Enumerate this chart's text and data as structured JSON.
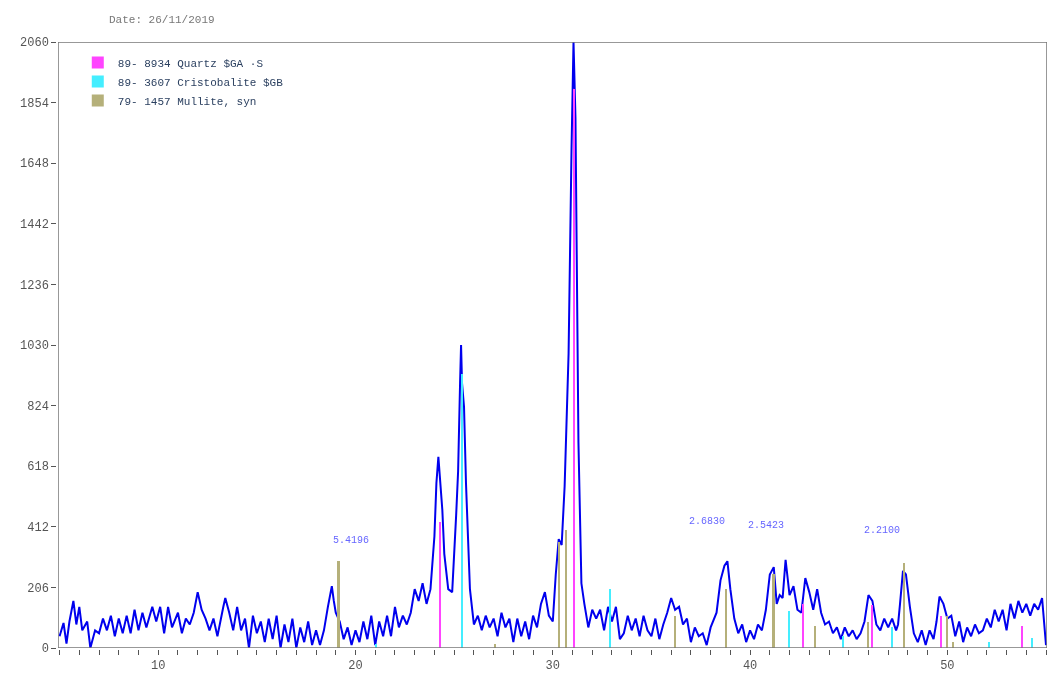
{
  "chart_data": {
    "type": "line",
    "xlim": [
      4.92,
      55.05
    ],
    "ylim": [
      0,
      2060
    ],
    "xticks": [
      {
        "value": 5,
        "label": null
      },
      {
        "value": 6,
        "label": null
      },
      {
        "value": 7,
        "label": null
      },
      {
        "value": 8,
        "label": null
      },
      {
        "value": 9,
        "label": null
      },
      10,
      {
        "value": 11,
        "label": null
      },
      {
        "value": 12,
        "label": null
      },
      {
        "value": 13,
        "label": null
      },
      {
        "value": 14,
        "label": null
      },
      {
        "value": 15,
        "label": null
      },
      {
        "value": 16,
        "label": null
      },
      {
        "value": 17,
        "label": null
      },
      {
        "value": 18,
        "label": null
      },
      {
        "value": 19,
        "label": null
      },
      20,
      {
        "value": 21,
        "label": null
      },
      {
        "value": 22,
        "label": null
      },
      {
        "value": 23,
        "label": null
      },
      {
        "value": 24,
        "label": null
      },
      {
        "value": 25,
        "label": null
      },
      {
        "value": 26,
        "label": null
      },
      {
        "value": 27,
        "label": null
      },
      {
        "value": 28,
        "label": null
      },
      {
        "value": 29,
        "label": null
      },
      30,
      {
        "value": 31,
        "label": null
      },
      {
        "value": 32,
        "label": null
      },
      {
        "value": 33,
        "label": null
      },
      {
        "value": 34,
        "label": null
      },
      {
        "value": 35,
        "label": null
      },
      {
        "value": 36,
        "label": null
      },
      {
        "value": 37,
        "label": null
      },
      {
        "value": 38,
        "label": null
      },
      {
        "value": 39,
        "label": null
      },
      40,
      {
        "value": 41,
        "label": null
      },
      {
        "value": 42,
        "label": null
      },
      {
        "value": 43,
        "label": null
      },
      {
        "value": 44,
        "label": null
      },
      {
        "value": 45,
        "label": null
      },
      {
        "value": 46,
        "label": null
      },
      {
        "value": 47,
        "label": null
      },
      {
        "value": 48,
        "label": null
      },
      {
        "value": 49,
        "label": null
      },
      50,
      {
        "value": 51,
        "label": null
      },
      {
        "value": 52,
        "label": null
      },
      {
        "value": 53,
        "label": null
      },
      {
        "value": 54,
        "label": null
      },
      {
        "value": 55,
        "label": null
      }
    ],
    "yticks": [
      0,
      206,
      412,
      618,
      824,
      1030,
      1236,
      1442,
      1648,
      1854,
      2060
    ],
    "legend": "top left",
    "marker": "none",
    "line_style": "solid",
    "series": [
      {
        "type": "bar",
        "name": "89- 8934 Quartz $GA ·S",
        "color": "#ff44ff",
        "x": [
          24.3,
          31.1,
          42.7,
          46.2,
          49.7,
          53.8
        ],
        "values": [
          430,
          1900,
          150,
          145,
          110,
          75
        ]
      },
      {
        "type": "bar",
        "name": "89- 3607 Cristobalite $GB",
        "color": "#44eeff",
        "x": [
          21.05,
          25.4,
          32.9,
          42.0,
          44.7,
          47.2,
          52.1,
          54.3
        ],
        "values": [
          15,
          930,
          200,
          125,
          40,
          70,
          20,
          35
        ]
      },
      {
        "type": "bar",
        "name": "79- 1457 Mullite, syn",
        "color": "#b5b07a",
        "x": [
          19.15,
          27.1,
          30.35,
          30.7,
          36.2,
          38.8,
          41.2,
          43.3,
          46.0,
          47.8,
          50.0,
          50.3
        ],
        "values": [
          295,
          15,
          360,
          400,
          110,
          200,
          250,
          75,
          90,
          290,
          110,
          20
        ]
      },
      {
        "color": "#0000ee",
        "x": [
          5.0,
          5.2,
          5.35,
          5.5,
          5.7,
          5.85,
          6.0,
          6.15,
          6.4,
          6.56,
          6.8,
          7.0,
          7.2,
          7.4,
          7.6,
          7.8,
          8.0,
          8.2,
          8.4,
          8.6,
          8.8,
          9.0,
          9.2,
          9.4,
          9.7,
          9.9,
          10.1,
          10.3,
          10.5,
          10.7,
          11.0,
          11.2,
          11.4,
          11.6,
          11.8,
          12.0,
          12.2,
          12.4,
          12.6,
          12.8,
          13.0,
          13.3,
          13.4,
          13.6,
          13.8,
          14.0,
          14.2,
          14.4,
          14.6,
          14.8,
          15.0,
          15.2,
          15.4,
          15.6,
          15.8,
          16.0,
          16.2,
          16.4,
          16.6,
          16.8,
          17.0,
          17.2,
          17.4,
          17.6,
          17.8,
          18.0,
          18.2,
          18.4,
          18.6,
          18.8,
          18.9,
          19.0,
          19.2,
          19.4,
          19.6,
          19.8,
          20.0,
          20.2,
          20.4,
          20.6,
          20.8,
          21.0,
          21.2,
          21.4,
          21.6,
          21.8,
          22.0,
          22.2,
          22.4,
          22.6,
          22.8,
          23.0,
          23.2,
          23.4,
          23.6,
          23.8,
          24.0,
          24.1,
          24.2,
          24.3,
          24.4,
          24.5,
          24.7,
          24.9,
          25.1,
          25.2,
          25.3,
          25.35,
          25.4,
          25.5,
          25.6,
          25.7,
          25.8,
          25.9,
          26.0,
          26.2,
          26.4,
          26.6,
          26.8,
          27.0,
          27.2,
          27.4,
          27.6,
          27.8,
          28.0,
          28.2,
          28.4,
          28.6,
          28.8,
          29.0,
          29.2,
          29.4,
          29.6,
          29.8,
          30.0,
          30.15,
          30.3,
          30.45,
          30.6,
          30.8,
          30.95,
          31.05,
          31.15,
          31.3,
          31.45,
          31.6,
          31.8,
          32.0,
          32.2,
          32.4,
          32.6,
          32.8,
          33.0,
          33.2,
          33.4,
          33.6,
          33.8,
          34.0,
          34.2,
          34.4,
          34.6,
          34.8,
          35.0,
          35.2,
          35.4,
          35.6,
          35.8,
          36.0,
          36.2,
          36.4,
          36.6,
          36.8,
          37.0,
          37.2,
          37.4,
          37.6,
          37.8,
          38.0,
          38.3,
          38.5,
          38.7,
          38.85,
          39.0,
          39.2,
          39.4,
          39.6,
          39.8,
          40.0,
          40.2,
          40.4,
          40.6,
          40.8,
          41.0,
          41.2,
          41.35,
          41.5,
          41.65,
          41.8,
          42.0,
          42.2,
          42.4,
          42.6,
          42.8,
          43.0,
          43.2,
          43.4,
          43.6,
          43.8,
          44.0,
          44.2,
          44.4,
          44.6,
          44.8,
          45.0,
          45.2,
          45.4,
          45.6,
          45.8,
          46.0,
          46.2,
          46.4,
          46.6,
          46.8,
          47.0,
          47.2,
          47.4,
          47.5,
          47.6,
          47.75,
          47.9,
          48.1,
          48.3,
          48.5,
          48.7,
          48.9,
          49.1,
          49.3,
          49.45,
          49.6,
          49.8,
          50.0,
          50.2,
          50.4,
          50.6,
          50.8,
          51.0,
          51.2,
          51.4,
          51.6,
          51.8,
          52.0,
          52.2,
          52.4,
          52.6,
          52.8,
          53.0,
          53.2,
          53.4,
          53.6,
          53.8,
          54.0,
          54.2,
          54.4,
          54.6,
          54.8,
          55.0
        ],
        "values": [
          40,
          85,
          15,
          90,
          160,
          80,
          140,
          60,
          90,
          0,
          60,
          50,
          100,
          60,
          110,
          40,
          100,
          50,
          110,
          50,
          130,
          60,
          120,
          70,
          140,
          90,
          140,
          50,
          140,
          70,
          120,
          50,
          100,
          80,
          120,
          190,
          130,
          100,
          60,
          100,
          40,
          140,
          170,
          120,
          60,
          140,
          60,
          100,
          0,
          110,
          50,
          90,
          20,
          100,
          30,
          110,
          0,
          80,
          20,
          100,
          0,
          70,
          20,
          90,
          10,
          60,
          10,
          60,
          140,
          210,
          160,
          120,
          90,
          30,
          70,
          10,
          60,
          20,
          90,
          30,
          110,
          10,
          90,
          40,
          110,
          40,
          140,
          70,
          110,
          80,
          120,
          200,
          160,
          220,
          150,
          200,
          380,
          560,
          650,
          560,
          470,
          320,
          200,
          190,
          450,
          600,
          900,
          1030,
          900,
          820,
          560,
          380,
          200,
          140,
          80,
          110,
          60,
          110,
          70,
          100,
          40,
          120,
          70,
          100,
          20,
          100,
          40,
          90,
          30,
          110,
          70,
          150,
          190,
          110,
          90,
          250,
          370,
          350,
          550,
          1000,
          1700,
          2060,
          1800,
          700,
          220,
          150,
          70,
          130,
          100,
          130,
          60,
          140,
          90,
          140,
          30,
          50,
          110,
          60,
          100,
          40,
          110,
          60,
          40,
          100,
          30,
          80,
          120,
          170,
          130,
          140,
          80,
          100,
          20,
          70,
          40,
          50,
          10,
          70,
          120,
          230,
          280,
          295,
          200,
          100,
          50,
          80,
          20,
          60,
          30,
          80,
          60,
          130,
          250,
          275,
          150,
          180,
          170,
          300,
          180,
          210,
          130,
          120,
          238,
          190,
          130,
          200,
          120,
          80,
          90,
          50,
          70,
          30,
          70,
          40,
          60,
          30,
          50,
          90,
          180,
          160,
          80,
          60,
          100,
          70,
          100,
          60,
          80,
          150,
          262,
          250,
          140,
          50,
          20,
          60,
          10,
          60,
          30,
          90,
          175,
          150,
          100,
          110,
          40,
          90,
          20,
          70,
          40,
          80,
          50,
          60,
          100,
          70,
          130,
          90,
          130,
          60,
          150,
          100,
          160,
          120,
          150,
          110,
          150,
          130,
          170,
          10
        ]
      }
    ],
    "annotations": [
      "Date: 26/11/2019",
      "5.4196",
      "2.6830",
      "2.5423",
      "2.2100"
    ]
  }
}
